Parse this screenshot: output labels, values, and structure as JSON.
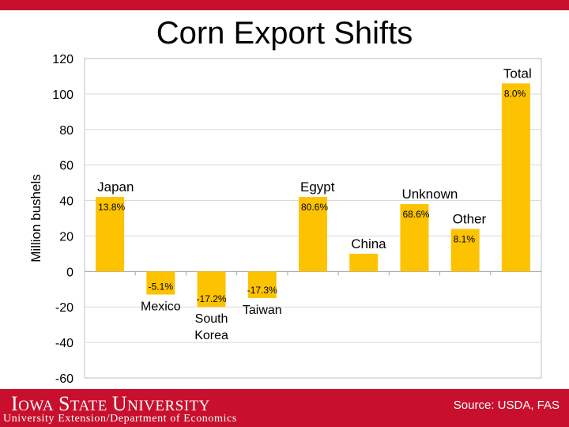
{
  "colors": {
    "brand": "#c8102e",
    "bar": "#fdc300",
    "grid": "#d9d9d9",
    "border": "#bfbfbf"
  },
  "slide": {
    "title": "Corn Export Shifts"
  },
  "footer": {
    "logo_text": "Iowa State University",
    "subtitle": "University Extension/Department of Economics",
    "source": "Source: USDA, FAS"
  },
  "chart_data": {
    "type": "bar",
    "ylabel": "Million bushels",
    "ylim": [
      -60,
      120
    ],
    "yticks": [
      120,
      100,
      80,
      60,
      40,
      20,
      0,
      -20,
      -40,
      -60
    ],
    "grid": true,
    "categories": [
      "Japan",
      "Mexico",
      "South Korea",
      "Taiwan",
      "Egypt",
      "China",
      "Unknown",
      "Other",
      "Total"
    ],
    "category_lines": [
      [
        "Japan"
      ],
      [
        "Mexico"
      ],
      [
        "South",
        "Korea"
      ],
      [
        "Taiwan"
      ],
      [
        "Egypt"
      ],
      [
        "China"
      ],
      [
        "Unknown"
      ],
      [
        "Other"
      ],
      [
        "Total"
      ]
    ],
    "values": [
      42,
      -13,
      -20,
      -15,
      42,
      10,
      38,
      24,
      106
    ],
    "data_labels": [
      "13.8%",
      "-5.1%",
      "-17.2%",
      "-17.3%",
      "80.6%",
      "",
      "68.6%",
      "8.1%",
      "8.0%"
    ]
  }
}
